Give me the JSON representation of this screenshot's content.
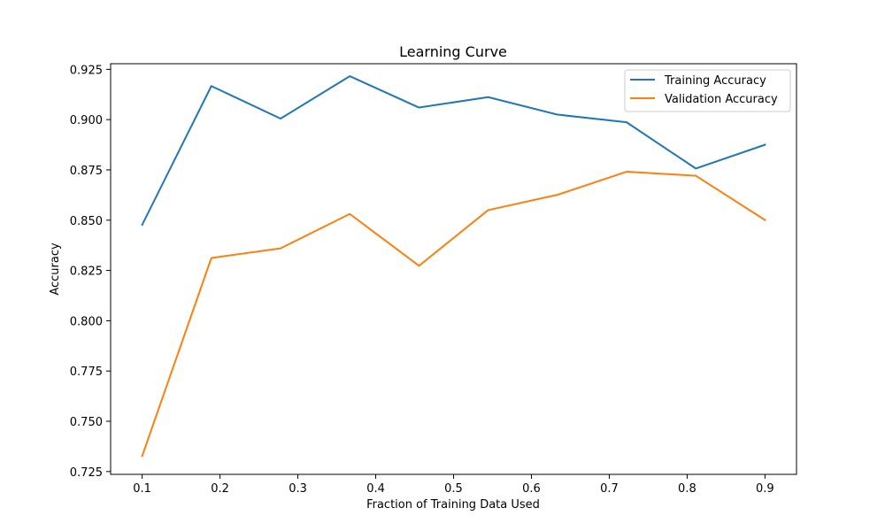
{
  "chart_data": {
    "type": "line",
    "title": "Learning Curve",
    "xlabel": "Fraction of Training Data Used",
    "ylabel": "Accuracy",
    "xlim": [
      0.0595,
      0.9405
    ],
    "ylim": [
      0.7236,
      0.9278
    ],
    "x_ticks": [
      0.1,
      0.2,
      0.3,
      0.4,
      0.5,
      0.6,
      0.7,
      0.8,
      0.9
    ],
    "x_tick_labels": [
      "0.1",
      "0.2",
      "0.3",
      "0.4",
      "0.5",
      "0.6",
      "0.7",
      "0.8",
      "0.9"
    ],
    "y_ticks": [
      0.725,
      0.75,
      0.775,
      0.8,
      0.825,
      0.85,
      0.875,
      0.9,
      0.925
    ],
    "y_tick_labels": [
      "0.725",
      "0.750",
      "0.775",
      "0.800",
      "0.825",
      "0.850",
      "0.875",
      "0.900",
      "0.925"
    ],
    "x": [
      0.1,
      0.1889,
      0.2778,
      0.3667,
      0.4556,
      0.5444,
      0.6333,
      0.7222,
      0.8111,
      0.9
    ],
    "series": [
      {
        "name": "Training Accuracy",
        "color": "#1f77b4",
        "values": [
          0.8477,
          0.9167,
          0.9005,
          0.9216,
          0.906,
          0.9112,
          0.9025,
          0.8987,
          0.8757,
          0.8875
        ]
      },
      {
        "name": "Validation Accuracy",
        "color": "#ff7f0e",
        "values": [
          0.7327,
          0.8312,
          0.836,
          0.8531,
          0.8273,
          0.855,
          0.8626,
          0.8741,
          0.8721,
          0.8501
        ]
      }
    ],
    "grid": false,
    "legend_position": "top-right"
  }
}
